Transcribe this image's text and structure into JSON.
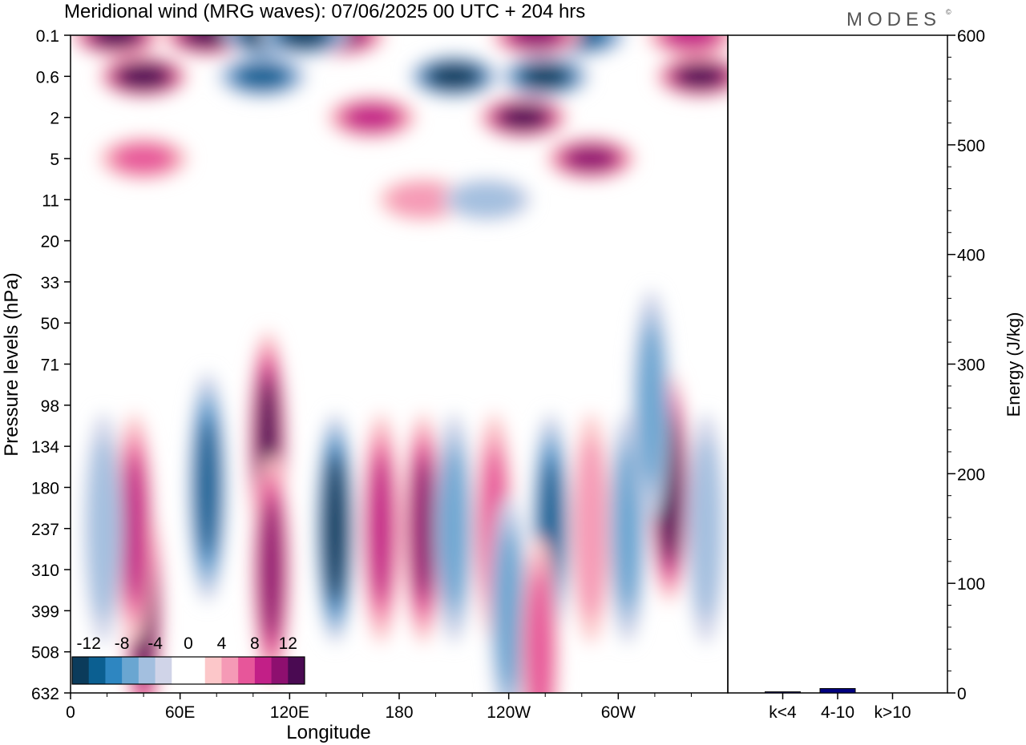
{
  "title": "Meridional wind (MRG waves):  07/06/2025  00 UTC  + 204 hrs",
  "brand": "MODES",
  "brand_mark": "©",
  "chart_data": [
    {
      "type": "heatmap",
      "title": "Meridional wind (MRG waves):  07/06/2025  00 UTC  + 204 hrs",
      "xlabel": "Longitude",
      "ylabel": "Pressure levels (hPa)",
      "x_tick_labels": [
        "0",
        "60E",
        "120E",
        "180",
        "120W",
        "60W"
      ],
      "x_tick_degrees": [
        0,
        60,
        120,
        180,
        240,
        300
      ],
      "x_range_degrees": [
        0,
        360
      ],
      "y_tick_labels": [
        "0.1",
        "0.6",
        "2",
        "5",
        "11",
        "20",
        "33",
        "50",
        "71",
        "98",
        "134",
        "180",
        "237",
        "310",
        "399",
        "508",
        "632"
      ],
      "y_axis": "pressure levels, decreasing upward",
      "colorbar": {
        "tick_labels": [
          "-12",
          "-8",
          "-4",
          "0",
          "4",
          "8",
          "12"
        ],
        "levels": [
          -14,
          -12,
          -10,
          -8,
          -6,
          -4,
          -2,
          0,
          2,
          4,
          6,
          8,
          10,
          12,
          14
        ],
        "colors": [
          "#0b3b5b",
          "#0b5f91",
          "#2e86c1",
          "#6aa6d1",
          "#a3bfdf",
          "#d0d4e8",
          "#ffffff",
          "#ffffff",
          "#fcc7c9",
          "#f59ab6",
          "#e7569a",
          "#c21f87",
          "#8e0f6f",
          "#4a0a52"
        ]
      },
      "features": [
        {
          "lon": 40,
          "level": 0.6,
          "value": 14
        },
        {
          "lon": 25,
          "level": 0.1,
          "value": 12
        },
        {
          "lon": 75,
          "level": 0.1,
          "value": 12
        },
        {
          "lon": 148,
          "level": 0.1,
          "value": 10
        },
        {
          "lon": 108,
          "level": 0.1,
          "value": -14
        },
        {
          "lon": 128,
          "level": 0.1,
          "value": -12
        },
        {
          "lon": 210,
          "level": 0.6,
          "value": -14
        },
        {
          "lon": 260,
          "level": 0.6,
          "value": -12
        },
        {
          "lon": 280,
          "level": 0.1,
          "value": -10
        },
        {
          "lon": 345,
          "level": 0.6,
          "value": 12
        },
        {
          "lon": 248,
          "level": 2,
          "value": 12
        },
        {
          "lon": 255,
          "level": 0.1,
          "value": 10
        },
        {
          "lon": 340,
          "level": 0.1,
          "value": 8
        },
        {
          "lon": 105,
          "level": 0.6,
          "value": -10
        },
        {
          "lon": 165,
          "level": 2,
          "value": 8
        },
        {
          "lon": 285,
          "level": 5,
          "value": 10
        },
        {
          "lon": 193,
          "level": 11,
          "value": 4
        },
        {
          "lon": 228,
          "level": 11,
          "value": -4
        },
        {
          "lon": 40,
          "level": 5,
          "value": 6
        },
        {
          "lon": 145,
          "level": 237,
          "value": -14
        },
        {
          "lon": 108,
          "level": 134,
          "value": 12
        },
        {
          "lon": 110,
          "level": 310,
          "value": 10
        },
        {
          "lon": 75,
          "level": 180,
          "value": -10
        },
        {
          "lon": 40,
          "level": 399,
          "value": 12
        },
        {
          "lon": 35,
          "level": 237,
          "value": 8
        },
        {
          "lon": 18,
          "level": 237,
          "value": -4
        },
        {
          "lon": 170,
          "level": 237,
          "value": 8
        },
        {
          "lon": 193,
          "level": 237,
          "value": 10
        },
        {
          "lon": 210,
          "level": 237,
          "value": -6
        },
        {
          "lon": 232,
          "level": 237,
          "value": 6
        },
        {
          "lon": 263,
          "level": 237,
          "value": -10
        },
        {
          "lon": 285,
          "level": 237,
          "value": 4
        },
        {
          "lon": 305,
          "level": 237,
          "value": -6
        },
        {
          "lon": 328,
          "level": 180,
          "value": 14
        },
        {
          "lon": 348,
          "level": 237,
          "value": -4
        },
        {
          "lon": 240,
          "level": 399,
          "value": -6
        },
        {
          "lon": 257,
          "level": 508,
          "value": 6
        },
        {
          "lon": 318,
          "level": 98,
          "value": -6
        }
      ]
    },
    {
      "type": "bar",
      "categories": [
        "k<4",
        "4-10",
        "k>10"
      ],
      "values": [
        1,
        4,
        0
      ],
      "ylabel": "Energy (J/kg)",
      "ylim": [
        0,
        600
      ],
      "y_tick_labels": [
        "0",
        "100",
        "200",
        "300",
        "400",
        "500",
        "600"
      ],
      "colors": [
        "#000080",
        "#000080",
        "#000080"
      ]
    }
  ]
}
